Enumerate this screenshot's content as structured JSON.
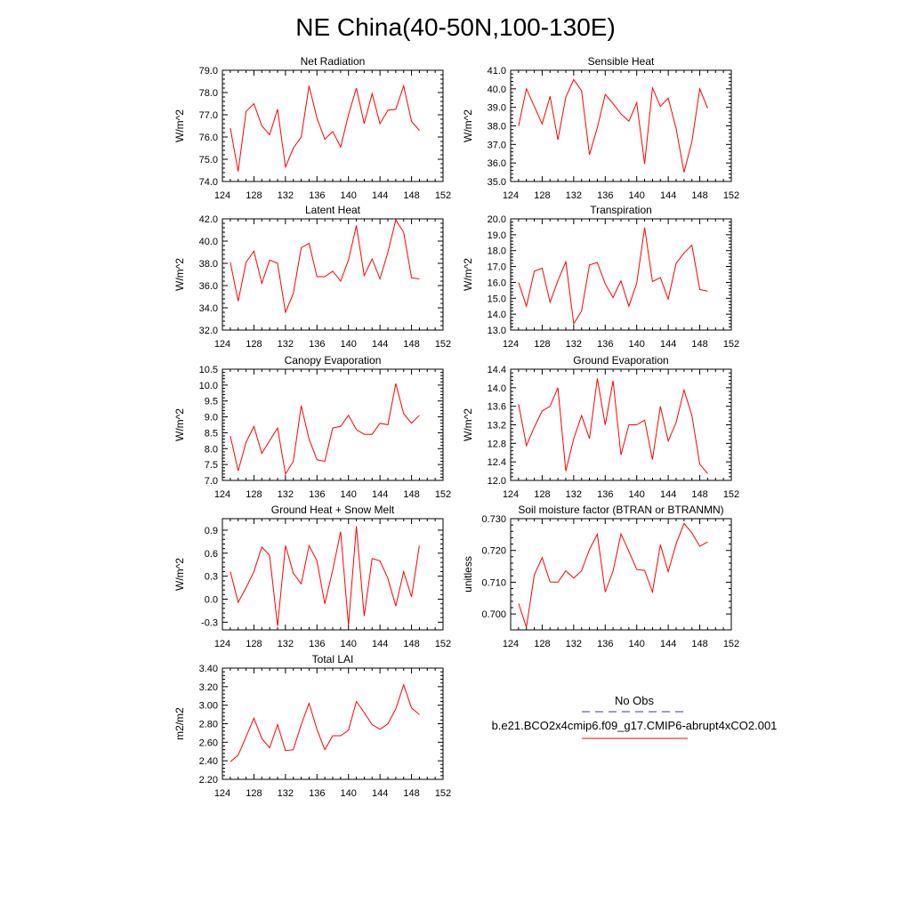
{
  "figure": {
    "title": "NE China(40-50N,100-130E)",
    "line_color": "#ff0000",
    "obs_color": "#3b3b8c"
  },
  "legend": {
    "obs_label": "No Obs",
    "case_label": "b.e21.BCO2x4cmip6.f09_g17.CMIP6-abrupt4xCO2.001"
  },
  "chart_data": [
    {
      "type": "line",
      "title": "Net Radiation",
      "ylabel": "W/m^2",
      "xlim": [
        124,
        152
      ],
      "ylim": [
        74.0,
        79.0
      ],
      "xticks": [
        124,
        128,
        132,
        136,
        140,
        144,
        148,
        152
      ],
      "yticks": [
        74.0,
        75.0,
        76.0,
        77.0,
        78.0,
        79.0
      ],
      "ytick_labels": [
        "74.0",
        "75.0",
        "76.0",
        "77.0",
        "78.0",
        "79.0"
      ],
      "x": [
        125,
        126,
        127,
        128,
        129,
        130,
        131,
        132,
        133,
        134,
        135,
        136,
        137,
        138,
        139,
        140,
        141,
        142,
        143,
        144,
        145,
        146,
        147,
        148,
        149
      ],
      "series": [
        {
          "name": "b.e21.BCO2x4cmip6.f09_g17.CMIP6-abrupt4xCO2.001",
          "values": [
            76.4,
            74.45,
            77.15,
            77.5,
            76.5,
            76.1,
            77.25,
            74.65,
            75.5,
            76.0,
            78.3,
            76.85,
            75.9,
            76.25,
            75.55,
            77.0,
            78.2,
            76.6,
            77.95,
            76.6,
            77.2,
            77.25,
            78.3,
            76.7,
            76.3
          ]
        }
      ]
    },
    {
      "type": "line",
      "title": "Sensible Heat",
      "ylabel": "W/m^2",
      "xlim": [
        124,
        152
      ],
      "ylim": [
        35.0,
        41.0
      ],
      "xticks": [
        124,
        128,
        132,
        136,
        140,
        144,
        148,
        152
      ],
      "yticks": [
        35.0,
        36.0,
        37.0,
        38.0,
        39.0,
        40.0,
        41.0
      ],
      "ytick_labels": [
        "35.0",
        "36.0",
        "37.0",
        "38.0",
        "39.0",
        "40.0",
        "41.0"
      ],
      "x": [
        125,
        126,
        127,
        128,
        129,
        130,
        131,
        132,
        133,
        134,
        135,
        136,
        137,
        138,
        139,
        140,
        141,
        142,
        143,
        144,
        145,
        146,
        147,
        148,
        149
      ],
      "series": [
        {
          "name": "b.e21.BCO2x4cmip6.f09_g17.CMIP6-abrupt4xCO2.001",
          "values": [
            38.0,
            40.0,
            39.05,
            38.1,
            39.6,
            37.25,
            39.55,
            40.5,
            39.9,
            36.45,
            37.9,
            39.7,
            39.2,
            38.65,
            38.25,
            39.25,
            35.95,
            40.05,
            39.05,
            39.5,
            37.85,
            35.5,
            37.15,
            40.0,
            38.95
          ]
        }
      ]
    },
    {
      "type": "line",
      "title": "Latent Heat",
      "ylabel": "W/m^2",
      "xlim": [
        124,
        152
      ],
      "ylim": [
        32.0,
        42.0
      ],
      "xticks": [
        124,
        128,
        132,
        136,
        140,
        144,
        148,
        152
      ],
      "yticks": [
        32.0,
        34.0,
        36.0,
        38.0,
        40.0,
        42.0
      ],
      "ytick_labels": [
        "32.0",
        "34.0",
        "36.0",
        "38.0",
        "40.0",
        "42.0"
      ],
      "x": [
        125,
        126,
        127,
        128,
        129,
        130,
        131,
        132,
        133,
        134,
        135,
        136,
        137,
        138,
        139,
        140,
        141,
        142,
        143,
        144,
        145,
        146,
        147,
        148,
        149
      ],
      "series": [
        {
          "name": "b.e21.BCO2x4cmip6.f09_g17.CMIP6-abrupt4xCO2.001",
          "values": [
            38.1,
            34.6,
            38.1,
            39.1,
            36.2,
            38.3,
            38.0,
            33.6,
            35.3,
            39.4,
            39.8,
            36.8,
            36.8,
            37.3,
            36.4,
            38.3,
            41.4,
            36.9,
            38.4,
            36.6,
            39.0,
            41.9,
            40.8,
            36.7,
            36.6
          ]
        }
      ]
    },
    {
      "type": "line",
      "title": "Transpiration",
      "ylabel": "W/m^2",
      "xlim": [
        124,
        152
      ],
      "ylim": [
        13.0,
        20.0
      ],
      "xticks": [
        124,
        128,
        132,
        136,
        140,
        144,
        148,
        152
      ],
      "yticks": [
        13.0,
        14.0,
        15.0,
        16.0,
        17.0,
        18.0,
        19.0,
        20.0
      ],
      "ytick_labels": [
        "13.0",
        "14.0",
        "15.0",
        "16.0",
        "17.0",
        "18.0",
        "19.0",
        "20.0"
      ],
      "x": [
        125,
        126,
        127,
        128,
        129,
        130,
        131,
        132,
        133,
        134,
        135,
        136,
        137,
        138,
        139,
        140,
        141,
        142,
        143,
        144,
        145,
        146,
        147,
        148,
        149
      ],
      "series": [
        {
          "name": "b.e21.BCO2x4cmip6.f09_g17.CMIP6-abrupt4xCO2.001",
          "values": [
            16.0,
            14.5,
            16.7,
            16.9,
            14.75,
            16.1,
            17.3,
            13.4,
            14.2,
            17.1,
            17.25,
            15.9,
            15.05,
            16.1,
            14.5,
            15.95,
            19.45,
            16.05,
            16.3,
            14.95,
            17.2,
            17.85,
            18.35,
            15.55,
            15.45
          ]
        }
      ]
    },
    {
      "type": "line",
      "title": "Canopy Evaporation",
      "ylabel": "W/m^2",
      "xlim": [
        124,
        152
      ],
      "ylim": [
        7.0,
        10.5
      ],
      "xticks": [
        124,
        128,
        132,
        136,
        140,
        144,
        148,
        152
      ],
      "yticks": [
        7.0,
        7.5,
        8.0,
        8.5,
        9.0,
        9.5,
        10.0,
        10.5
      ],
      "ytick_labels": [
        "7.0",
        "7.5",
        "8.0",
        "8.5",
        "9.0",
        "9.5",
        "10.0",
        "10.5"
      ],
      "x": [
        125,
        126,
        127,
        128,
        129,
        130,
        131,
        132,
        133,
        134,
        135,
        136,
        137,
        138,
        139,
        140,
        141,
        142,
        143,
        144,
        145,
        146,
        147,
        148,
        149
      ],
      "series": [
        {
          "name": "b.e21.BCO2x4cmip6.f09_g17.CMIP6-abrupt4xCO2.001",
          "values": [
            8.4,
            7.3,
            8.2,
            8.7,
            7.85,
            8.25,
            8.65,
            7.2,
            7.6,
            9.35,
            8.3,
            7.65,
            7.6,
            8.65,
            8.7,
            9.05,
            8.6,
            8.45,
            8.45,
            8.8,
            8.75,
            10.05,
            9.1,
            8.8,
            9.05
          ]
        }
      ]
    },
    {
      "type": "line",
      "title": "Ground Evaporation",
      "ylabel": "W/m^2",
      "xlim": [
        124,
        152
      ],
      "ylim": [
        12.0,
        14.4
      ],
      "xticks": [
        124,
        128,
        132,
        136,
        140,
        144,
        148,
        152
      ],
      "yticks": [
        12.0,
        12.4,
        12.8,
        13.2,
        13.6,
        14.0,
        14.4
      ],
      "ytick_labels": [
        "12.0",
        "12.4",
        "12.8",
        "13.2",
        "13.6",
        "14.0",
        "14.4"
      ],
      "x": [
        125,
        126,
        127,
        128,
        129,
        130,
        131,
        132,
        133,
        134,
        135,
        136,
        137,
        138,
        139,
        140,
        141,
        142,
        143,
        144,
        145,
        146,
        147,
        148,
        149
      ],
      "series": [
        {
          "name": "b.e21.BCO2x4cmip6.f09_g17.CMIP6-abrupt4xCO2.001",
          "values": [
            13.65,
            12.75,
            13.15,
            13.5,
            13.6,
            14.0,
            12.2,
            12.9,
            13.4,
            12.9,
            14.2,
            13.2,
            14.15,
            12.55,
            13.2,
            13.2,
            13.3,
            12.45,
            13.6,
            12.85,
            13.25,
            13.95,
            13.4,
            12.35,
            12.15
          ]
        }
      ]
    },
    {
      "type": "line",
      "title": "Ground Heat + Snow Melt",
      "ylabel": "W/m^2",
      "xlim": [
        124,
        152
      ],
      "ylim": [
        -0.4,
        1.05
      ],
      "xticks": [
        124,
        128,
        132,
        136,
        140,
        144,
        148,
        152
      ],
      "yticks": [
        -0.3,
        0.0,
        0.3,
        0.6,
        0.9
      ],
      "ytick_labels": [
        "-0.3",
        "0.0",
        "0.3",
        "0.6",
        "0.9"
      ],
      "x": [
        125,
        126,
        127,
        128,
        129,
        130,
        131,
        132,
        133,
        134,
        135,
        136,
        137,
        138,
        139,
        140,
        141,
        142,
        143,
        144,
        145,
        146,
        147,
        148,
        149
      ],
      "series": [
        {
          "name": "b.e21.BCO2x4cmip6.f09_g17.CMIP6-abrupt4xCO2.001",
          "values": [
            0.36,
            -0.04,
            0.15,
            0.36,
            0.68,
            0.57,
            -0.35,
            0.7,
            0.34,
            0.2,
            0.7,
            0.5,
            -0.06,
            0.38,
            0.88,
            -0.34,
            0.95,
            -0.22,
            0.53,
            0.5,
            0.27,
            -0.09,
            0.36,
            0.03,
            0.7
          ]
        }
      ]
    },
    {
      "type": "line",
      "title": "Soil moisture factor (BTRAN or BTRANMN)",
      "ylabel": "unitless",
      "xlim": [
        124,
        152
      ],
      "ylim": [
        0.695,
        0.73
      ],
      "xticks": [
        124,
        128,
        132,
        136,
        140,
        144,
        148,
        152
      ],
      "yticks": [
        0.7,
        0.71,
        0.72,
        0.73
      ],
      "ytick_labels": [
        "0.700",
        "0.710",
        "0.720",
        "0.730"
      ],
      "x": [
        125,
        126,
        127,
        128,
        129,
        130,
        131,
        132,
        133,
        134,
        135,
        136,
        137,
        138,
        139,
        140,
        141,
        142,
        143,
        144,
        145,
        146,
        147,
        148,
        149
      ],
      "series": [
        {
          "name": "b.e21.BCO2x4cmip6.f09_g17.CMIP6-abrupt4xCO2.001",
          "values": [
            0.7033,
            0.6958,
            0.7123,
            0.7177,
            0.7101,
            0.71,
            0.7136,
            0.7113,
            0.7136,
            0.7203,
            0.7251,
            0.7069,
            0.7135,
            0.7252,
            0.7197,
            0.714,
            0.7137,
            0.7069,
            0.7218,
            0.7133,
            0.7221,
            0.7285,
            0.7255,
            0.7213,
            0.7227
          ]
        }
      ]
    },
    {
      "type": "line",
      "title": "Total LAI",
      "ylabel": "m2/m2",
      "xlim": [
        124,
        152
      ],
      "ylim": [
        2.2,
        3.4
      ],
      "xticks": [
        124,
        128,
        132,
        136,
        140,
        144,
        148,
        152
      ],
      "yticks": [
        2.2,
        2.4,
        2.6,
        2.8,
        3.0,
        3.2,
        3.4
      ],
      "ytick_labels": [
        "2.20",
        "2.40",
        "2.60",
        "2.80",
        "3.00",
        "3.20",
        "3.40"
      ],
      "x": [
        125,
        126,
        127,
        128,
        129,
        130,
        131,
        132,
        133,
        134,
        135,
        136,
        137,
        138,
        139,
        140,
        141,
        142,
        143,
        144,
        145,
        146,
        147,
        148,
        149
      ],
      "series": [
        {
          "name": "b.e21.BCO2x4cmip6.f09_g17.CMIP6-abrupt4xCO2.001",
          "values": [
            2.39,
            2.46,
            2.66,
            2.86,
            2.64,
            2.54,
            2.79,
            2.51,
            2.52,
            2.79,
            3.02,
            2.74,
            2.52,
            2.67,
            2.67,
            2.73,
            3.04,
            2.92,
            2.79,
            2.74,
            2.8,
            2.96,
            3.22,
            2.97,
            2.9
          ]
        }
      ]
    }
  ]
}
